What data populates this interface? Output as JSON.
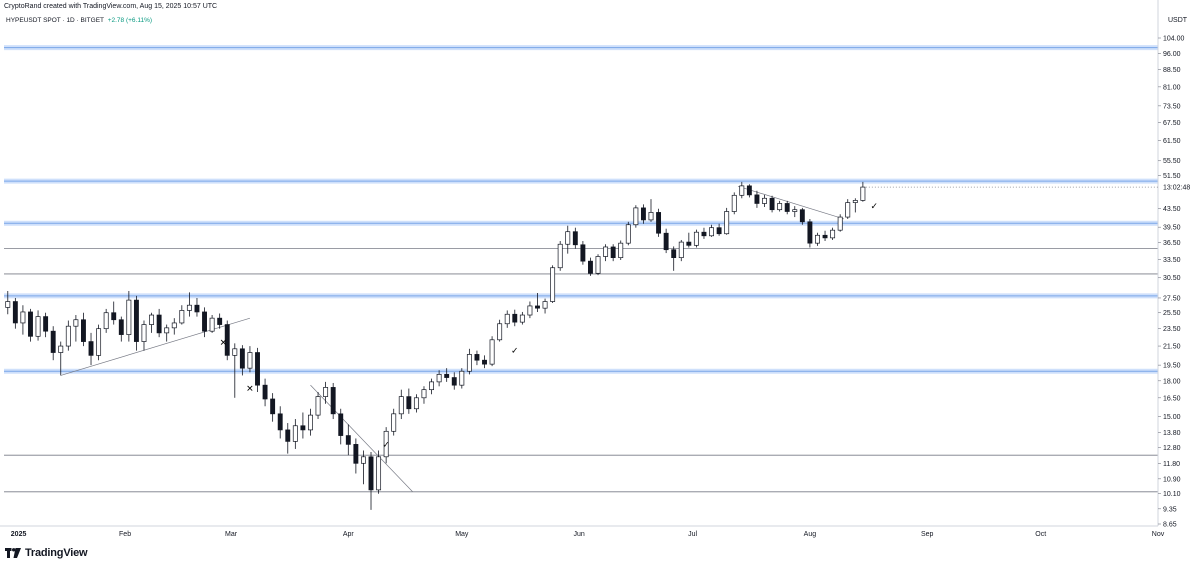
{
  "header": {
    "credit": "CryptoRand created with TradingView.com, Aug 15, 2025 10:57 UTC",
    "symbol": "HYPEUSDT SPOT · 1D · BITGET",
    "change": "+2.78 (+6.11%)",
    "unit": "USDT"
  },
  "footer": {
    "brand": "TradingView",
    "logo_icon": "tradingview-logo-icon"
  },
  "chart_data": {
    "type": "candlestick",
    "y_scale": "log",
    "ylim": [
      8.65,
      104.0
    ],
    "y_ticks": [
      "104.00",
      "96.00",
      "88.50",
      "81.00",
      "73.50",
      "67.50",
      "61.50",
      "55.50",
      "51.50",
      "43.50",
      "39.50",
      "36.50",
      "33.50",
      "30.50",
      "27.50",
      "25.50",
      "23.50",
      "21.50",
      "19.50",
      "18.00",
      "16.50",
      "15.00",
      "13.80",
      "12.80",
      "11.80",
      "10.90",
      "10.10",
      "9.35",
      "8.65"
    ],
    "x_ticks": [
      {
        "label": "2025",
        "date": "2025-01-01",
        "bold": true
      },
      {
        "label": "Feb",
        "date": "2025-02-01"
      },
      {
        "label": "Mar",
        "date": "2025-03-01"
      },
      {
        "label": "Apr",
        "date": "2025-04-01"
      },
      {
        "label": "May",
        "date": "2025-05-01"
      },
      {
        "label": "Jun",
        "date": "2025-06-01"
      },
      {
        "label": "Jul",
        "date": "2025-07-01"
      },
      {
        "label": "Aug",
        "date": "2025-08-01"
      },
      {
        "label": "Sep",
        "date": "2025-09-01"
      },
      {
        "label": "Oct",
        "date": "2025-10-01"
      },
      {
        "label": "Nov",
        "date": "2025-11-01"
      }
    ],
    "xlim": [
      "2024-12-31",
      "2025-11-01"
    ],
    "current_price_label": "13:02:48",
    "current_price": 48.5,
    "levels": [
      {
        "price": 99.0,
        "style": "zone"
      },
      {
        "price": 50.0,
        "style": "zone"
      },
      {
        "price": 40.3,
        "style": "zone"
      },
      {
        "price": 35.4,
        "style": "line"
      },
      {
        "price": 31.1,
        "style": "line"
      },
      {
        "price": 27.8,
        "style": "zone"
      },
      {
        "price": 18.9,
        "style": "zone"
      },
      {
        "price": 12.3,
        "style": "line"
      },
      {
        "price": 10.2,
        "style": "line"
      }
    ],
    "trendlines": [
      {
        "from": {
          "date": "2025-01-15",
          "price": 18.5
        },
        "to": {
          "date": "2025-03-06",
          "price": 24.8
        }
      },
      {
        "from": {
          "date": "2025-03-22",
          "price": 17.6
        },
        "to": {
          "date": "2025-04-18",
          "price": 10.2
        }
      },
      {
        "from": {
          "date": "2025-07-13",
          "price": 48.7
        },
        "to": {
          "date": "2025-08-10",
          "price": 41.2
        }
      }
    ],
    "markers": [
      {
        "date": "2025-02-27",
        "price": 21.9,
        "symbol": "✕"
      },
      {
        "date": "2025-03-06",
        "price": 17.3,
        "symbol": "✕"
      },
      {
        "date": "2025-04-11",
        "price": 13.0,
        "symbol": "✓"
      },
      {
        "date": "2025-05-15",
        "price": 21.0,
        "symbol": "✓"
      },
      {
        "date": "2025-08-18",
        "price": 44.0,
        "symbol": "✓"
      }
    ],
    "series": [
      {
        "date": "2025-01-01",
        "open": 26.2,
        "high": 28.5,
        "low": 25.3,
        "close": 27.0
      },
      {
        "date": "2025-01-03",
        "open": 27.0,
        "high": 27.5,
        "low": 23.5,
        "close": 24.2
      },
      {
        "date": "2025-01-05",
        "open": 24.2,
        "high": 26.5,
        "low": 22.8,
        "close": 25.6
      },
      {
        "date": "2025-01-07",
        "open": 25.6,
        "high": 26.0,
        "low": 22.0,
        "close": 22.6
      },
      {
        "date": "2025-01-09",
        "open": 22.6,
        "high": 25.8,
        "low": 22.1,
        "close": 25.0
      },
      {
        "date": "2025-01-11",
        "open": 25.0,
        "high": 25.5,
        "low": 22.5,
        "close": 23.2
      },
      {
        "date": "2025-01-13",
        "open": 23.2,
        "high": 23.8,
        "low": 20.0,
        "close": 20.8
      },
      {
        "date": "2025-01-15",
        "open": 20.8,
        "high": 22.0,
        "low": 18.5,
        "close": 21.5
      },
      {
        "date": "2025-01-17",
        "open": 21.5,
        "high": 24.5,
        "low": 21.0,
        "close": 23.8
      },
      {
        "date": "2025-01-19",
        "open": 23.8,
        "high": 25.2,
        "low": 22.0,
        "close": 24.6
      },
      {
        "date": "2025-01-21",
        "open": 24.6,
        "high": 25.5,
        "low": 21.5,
        "close": 22.0
      },
      {
        "date": "2025-01-23",
        "open": 22.0,
        "high": 23.0,
        "low": 19.5,
        "close": 20.5
      },
      {
        "date": "2025-01-25",
        "open": 20.5,
        "high": 24.0,
        "low": 20.0,
        "close": 23.5
      },
      {
        "date": "2025-01-27",
        "open": 23.5,
        "high": 26.0,
        "low": 23.0,
        "close": 25.5
      },
      {
        "date": "2025-01-29",
        "open": 25.5,
        "high": 27.0,
        "low": 24.0,
        "close": 24.6
      },
      {
        "date": "2025-01-31",
        "open": 24.6,
        "high": 25.0,
        "low": 22.0,
        "close": 22.8
      },
      {
        "date": "2025-02-02",
        "open": 22.8,
        "high": 28.5,
        "low": 22.0,
        "close": 27.2
      },
      {
        "date": "2025-02-04",
        "open": 27.2,
        "high": 27.8,
        "low": 21.0,
        "close": 22.0
      },
      {
        "date": "2025-02-06",
        "open": 22.0,
        "high": 24.5,
        "low": 21.0,
        "close": 24.0
      },
      {
        "date": "2025-02-08",
        "open": 24.0,
        "high": 25.5,
        "low": 23.0,
        "close": 25.2
      },
      {
        "date": "2025-02-10",
        "open": 25.2,
        "high": 26.0,
        "low": 22.5,
        "close": 23.0
      },
      {
        "date": "2025-02-12",
        "open": 23.0,
        "high": 24.0,
        "low": 22.0,
        "close": 23.6
      },
      {
        "date": "2025-02-14",
        "open": 23.6,
        "high": 24.8,
        "low": 22.8,
        "close": 24.2
      },
      {
        "date": "2025-02-16",
        "open": 24.2,
        "high": 26.5,
        "low": 24.0,
        "close": 25.8
      },
      {
        "date": "2025-02-18",
        "open": 25.8,
        "high": 28.3,
        "low": 25.0,
        "close": 26.5
      },
      {
        "date": "2025-02-20",
        "open": 26.5,
        "high": 27.5,
        "low": 25.0,
        "close": 25.6
      },
      {
        "date": "2025-02-22",
        "open": 25.6,
        "high": 26.2,
        "low": 22.5,
        "close": 23.2
      },
      {
        "date": "2025-02-24",
        "open": 23.2,
        "high": 25.2,
        "low": 23.0,
        "close": 24.8
      },
      {
        "date": "2025-02-26",
        "open": 24.8,
        "high": 25.4,
        "low": 23.5,
        "close": 24.0
      },
      {
        "date": "2025-02-28",
        "open": 24.0,
        "high": 24.5,
        "low": 20.0,
        "close": 20.5
      },
      {
        "date": "2025-03-02",
        "open": 20.5,
        "high": 21.8,
        "low": 16.5,
        "close": 21.2
      },
      {
        "date": "2025-03-04",
        "open": 21.2,
        "high": 21.6,
        "low": 18.5,
        "close": 19.2
      },
      {
        "date": "2025-03-06",
        "open": 19.2,
        "high": 21.5,
        "low": 18.8,
        "close": 20.8
      },
      {
        "date": "2025-03-08",
        "open": 20.8,
        "high": 21.3,
        "low": 17.0,
        "close": 17.6
      },
      {
        "date": "2025-03-10",
        "open": 17.6,
        "high": 18.2,
        "low": 15.8,
        "close": 16.4
      },
      {
        "date": "2025-03-12",
        "open": 16.4,
        "high": 16.9,
        "low": 14.6,
        "close": 15.2
      },
      {
        "date": "2025-03-14",
        "open": 15.2,
        "high": 15.8,
        "low": 13.4,
        "close": 14.0
      },
      {
        "date": "2025-03-16",
        "open": 14.0,
        "high": 14.5,
        "low": 12.4,
        "close": 13.2
      },
      {
        "date": "2025-03-18",
        "open": 13.2,
        "high": 14.8,
        "low": 12.7,
        "close": 14.3
      },
      {
        "date": "2025-03-20",
        "open": 14.3,
        "high": 15.3,
        "low": 13.4,
        "close": 14.0
      },
      {
        "date": "2025-03-22",
        "open": 14.0,
        "high": 15.6,
        "low": 13.6,
        "close": 15.1
      },
      {
        "date": "2025-03-24",
        "open": 15.1,
        "high": 17.0,
        "low": 14.8,
        "close": 16.6
      },
      {
        "date": "2025-03-26",
        "open": 16.6,
        "high": 17.9,
        "low": 16.0,
        "close": 17.4
      },
      {
        "date": "2025-03-28",
        "open": 17.4,
        "high": 17.8,
        "low": 14.8,
        "close": 15.2
      },
      {
        "date": "2025-03-30",
        "open": 15.2,
        "high": 15.6,
        "low": 13.0,
        "close": 13.6
      },
      {
        "date": "2025-04-01",
        "open": 13.6,
        "high": 14.4,
        "low": 12.3,
        "close": 13.0
      },
      {
        "date": "2025-04-03",
        "open": 13.0,
        "high": 13.4,
        "low": 11.2,
        "close": 11.8
      },
      {
        "date": "2025-04-05",
        "open": 11.8,
        "high": 12.6,
        "low": 10.6,
        "close": 12.2
      },
      {
        "date": "2025-04-07",
        "open": 12.2,
        "high": 12.5,
        "low": 9.3,
        "close": 10.3
      },
      {
        "date": "2025-04-09",
        "open": 10.3,
        "high": 12.6,
        "low": 10.1,
        "close": 12.2
      },
      {
        "date": "2025-04-11",
        "open": 12.2,
        "high": 14.2,
        "low": 11.8,
        "close": 13.9
      },
      {
        "date": "2025-04-13",
        "open": 13.9,
        "high": 15.6,
        "low": 13.6,
        "close": 15.2
      },
      {
        "date": "2025-04-15",
        "open": 15.2,
        "high": 17.2,
        "low": 14.8,
        "close": 16.6
      },
      {
        "date": "2025-04-17",
        "open": 16.6,
        "high": 17.3,
        "low": 15.2,
        "close": 15.6
      },
      {
        "date": "2025-04-19",
        "open": 15.6,
        "high": 16.8,
        "low": 15.3,
        "close": 16.5
      },
      {
        "date": "2025-04-21",
        "open": 16.5,
        "high": 17.5,
        "low": 16.0,
        "close": 17.2
      },
      {
        "date": "2025-04-23",
        "open": 17.2,
        "high": 18.2,
        "low": 16.8,
        "close": 17.9
      },
      {
        "date": "2025-04-25",
        "open": 17.9,
        "high": 19.0,
        "low": 17.5,
        "close": 18.6
      },
      {
        "date": "2025-04-27",
        "open": 18.6,
        "high": 19.2,
        "low": 17.9,
        "close": 18.3
      },
      {
        "date": "2025-04-29",
        "open": 18.3,
        "high": 18.8,
        "low": 17.2,
        "close": 17.6
      },
      {
        "date": "2025-05-01",
        "open": 17.6,
        "high": 19.2,
        "low": 17.3,
        "close": 18.9
      },
      {
        "date": "2025-05-03",
        "open": 18.9,
        "high": 21.2,
        "low": 18.6,
        "close": 20.6
      },
      {
        "date": "2025-05-05",
        "open": 20.6,
        "high": 21.0,
        "low": 19.5,
        "close": 20.0
      },
      {
        "date": "2025-05-07",
        "open": 20.0,
        "high": 20.5,
        "low": 19.2,
        "close": 19.6
      },
      {
        "date": "2025-05-09",
        "open": 19.6,
        "high": 22.6,
        "low": 19.4,
        "close": 22.2
      },
      {
        "date": "2025-05-11",
        "open": 22.2,
        "high": 24.6,
        "low": 22.0,
        "close": 24.1
      },
      {
        "date": "2025-05-13",
        "open": 24.1,
        "high": 25.8,
        "low": 23.6,
        "close": 25.3
      },
      {
        "date": "2025-05-15",
        "open": 25.3,
        "high": 25.9,
        "low": 23.8,
        "close": 24.3
      },
      {
        "date": "2025-05-17",
        "open": 24.3,
        "high": 25.6,
        "low": 24.0,
        "close": 25.2
      },
      {
        "date": "2025-05-19",
        "open": 25.2,
        "high": 27.0,
        "low": 24.8,
        "close": 26.4
      },
      {
        "date": "2025-05-21",
        "open": 26.4,
        "high": 28.2,
        "low": 25.6,
        "close": 26.1
      },
      {
        "date": "2025-05-23",
        "open": 26.1,
        "high": 27.4,
        "low": 25.4,
        "close": 27.0
      },
      {
        "date": "2025-05-25",
        "open": 27.0,
        "high": 32.5,
        "low": 26.8,
        "close": 32.1
      },
      {
        "date": "2025-05-27",
        "open": 32.1,
        "high": 36.8,
        "low": 31.6,
        "close": 36.2
      },
      {
        "date": "2025-05-29",
        "open": 36.2,
        "high": 39.8,
        "low": 34.5,
        "close": 38.6
      },
      {
        "date": "2025-05-31",
        "open": 38.6,
        "high": 39.4,
        "low": 35.4,
        "close": 36.1
      },
      {
        "date": "2025-06-02",
        "open": 36.1,
        "high": 36.8,
        "low": 32.6,
        "close": 33.2
      },
      {
        "date": "2025-06-04",
        "open": 33.2,
        "high": 33.8,
        "low": 30.8,
        "close": 31.2
      },
      {
        "date": "2025-06-06",
        "open": 31.2,
        "high": 34.4,
        "low": 30.9,
        "close": 34.0
      },
      {
        "date": "2025-06-08",
        "open": 34.0,
        "high": 36.2,
        "low": 33.2,
        "close": 35.7
      },
      {
        "date": "2025-06-10",
        "open": 35.7,
        "high": 36.2,
        "low": 33.2,
        "close": 33.8
      },
      {
        "date": "2025-06-12",
        "open": 33.8,
        "high": 36.9,
        "low": 33.4,
        "close": 36.4
      },
      {
        "date": "2025-06-14",
        "open": 36.4,
        "high": 40.6,
        "low": 36.0,
        "close": 40.0
      },
      {
        "date": "2025-06-16",
        "open": 40.0,
        "high": 44.2,
        "low": 39.4,
        "close": 43.6
      },
      {
        "date": "2025-06-18",
        "open": 43.6,
        "high": 44.4,
        "low": 40.2,
        "close": 41.0
      },
      {
        "date": "2025-06-20",
        "open": 41.0,
        "high": 45.6,
        "low": 40.6,
        "close": 42.6
      },
      {
        "date": "2025-06-22",
        "open": 42.6,
        "high": 43.4,
        "low": 37.6,
        "close": 38.3
      },
      {
        "date": "2025-06-24",
        "open": 38.3,
        "high": 39.2,
        "low": 34.6,
        "close": 35.2
      },
      {
        "date": "2025-06-26",
        "open": 35.2,
        "high": 35.8,
        "low": 31.6,
        "close": 33.8
      },
      {
        "date": "2025-06-28",
        "open": 33.8,
        "high": 37.0,
        "low": 33.2,
        "close": 36.6
      },
      {
        "date": "2025-06-30",
        "open": 36.6,
        "high": 38.4,
        "low": 35.6,
        "close": 36.0
      },
      {
        "date": "2025-07-02",
        "open": 36.0,
        "high": 39.0,
        "low": 35.6,
        "close": 38.5
      },
      {
        "date": "2025-07-04",
        "open": 38.5,
        "high": 39.4,
        "low": 37.2,
        "close": 37.8
      },
      {
        "date": "2025-07-06",
        "open": 37.8,
        "high": 40.0,
        "low": 37.6,
        "close": 39.4
      },
      {
        "date": "2025-07-08",
        "open": 39.4,
        "high": 40.2,
        "low": 37.8,
        "close": 38.2
      },
      {
        "date": "2025-07-10",
        "open": 38.2,
        "high": 43.6,
        "low": 38.0,
        "close": 42.8
      },
      {
        "date": "2025-07-12",
        "open": 42.8,
        "high": 47.2,
        "low": 42.2,
        "close": 46.5
      },
      {
        "date": "2025-07-14",
        "open": 46.5,
        "high": 49.8,
        "low": 45.8,
        "close": 48.8
      },
      {
        "date": "2025-07-16",
        "open": 48.8,
        "high": 49.2,
        "low": 46.0,
        "close": 46.6
      },
      {
        "date": "2025-07-18",
        "open": 46.6,
        "high": 47.6,
        "low": 43.6,
        "close": 44.6
      },
      {
        "date": "2025-07-20",
        "open": 44.6,
        "high": 46.6,
        "low": 43.8,
        "close": 45.8
      },
      {
        "date": "2025-07-22",
        "open": 45.8,
        "high": 46.4,
        "low": 42.6,
        "close": 43.2
      },
      {
        "date": "2025-07-24",
        "open": 43.2,
        "high": 45.2,
        "low": 42.8,
        "close": 44.6
      },
      {
        "date": "2025-07-26",
        "open": 44.6,
        "high": 45.2,
        "low": 42.2,
        "close": 42.8
      },
      {
        "date": "2025-07-28",
        "open": 42.8,
        "high": 44.0,
        "low": 41.6,
        "close": 43.2
      },
      {
        "date": "2025-07-30",
        "open": 43.2,
        "high": 43.6,
        "low": 40.0,
        "close": 40.6
      },
      {
        "date": "2025-08-01",
        "open": 40.6,
        "high": 41.2,
        "low": 35.6,
        "close": 36.4
      },
      {
        "date": "2025-08-03",
        "open": 36.4,
        "high": 38.4,
        "low": 35.9,
        "close": 37.9
      },
      {
        "date": "2025-08-05",
        "open": 37.9,
        "high": 38.8,
        "low": 36.8,
        "close": 37.4
      },
      {
        "date": "2025-08-07",
        "open": 37.4,
        "high": 39.4,
        "low": 37.0,
        "close": 38.9
      },
      {
        "date": "2025-08-09",
        "open": 38.9,
        "high": 42.2,
        "low": 38.6,
        "close": 41.6
      },
      {
        "date": "2025-08-11",
        "open": 41.6,
        "high": 45.6,
        "low": 41.2,
        "close": 44.8
      },
      {
        "date": "2025-08-13",
        "open": 44.8,
        "high": 45.8,
        "low": 42.6,
        "close": 45.3
      },
      {
        "date": "2025-08-15",
        "open": 45.3,
        "high": 49.8,
        "low": 45.0,
        "close": 48.5
      }
    ]
  }
}
